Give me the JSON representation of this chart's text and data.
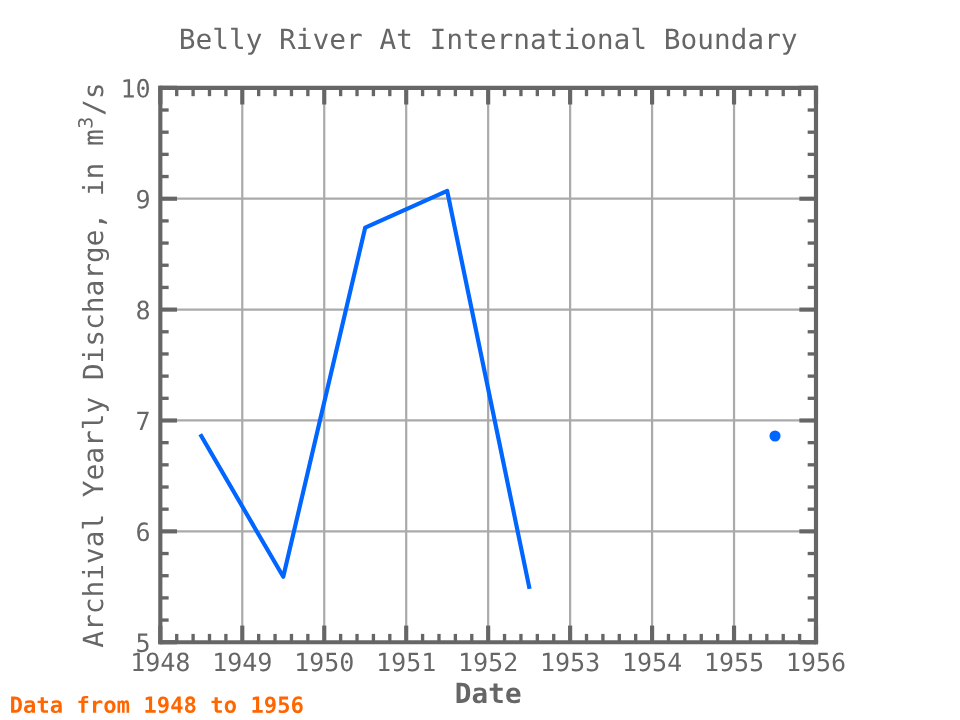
{
  "chart_data": {
    "type": "line",
    "title": "Belly River At International Boundary",
    "xlabel": "Date",
    "ylabel": "Archival Yearly Discharge, in m$^{3}$/s",
    "x": [
      1948.5,
      1949.5,
      1950.5,
      1951.5,
      1952.5,
      1953.5,
      1954.5,
      1955.5
    ],
    "series": [
      {
        "color": "#0066ff",
        "values": [
          6.86,
          5.59,
          8.74,
          9.07,
          5.5,
          null,
          null,
          6.86
        ]
      }
    ],
    "xlim": [
      1948,
      1956
    ],
    "xticks": [
      1948,
      1949,
      1950,
      1951,
      1952,
      1953,
      1954,
      1955,
      1956
    ],
    "ylim": [
      5,
      10
    ],
    "yticks": [
      5,
      6,
      7,
      8,
      9,
      10
    ],
    "grid": true,
    "legend": false,
    "marker": "none",
    "line_style": "solid",
    "annotations": [
      "Data from 1948 to 1956"
    ]
  }
}
